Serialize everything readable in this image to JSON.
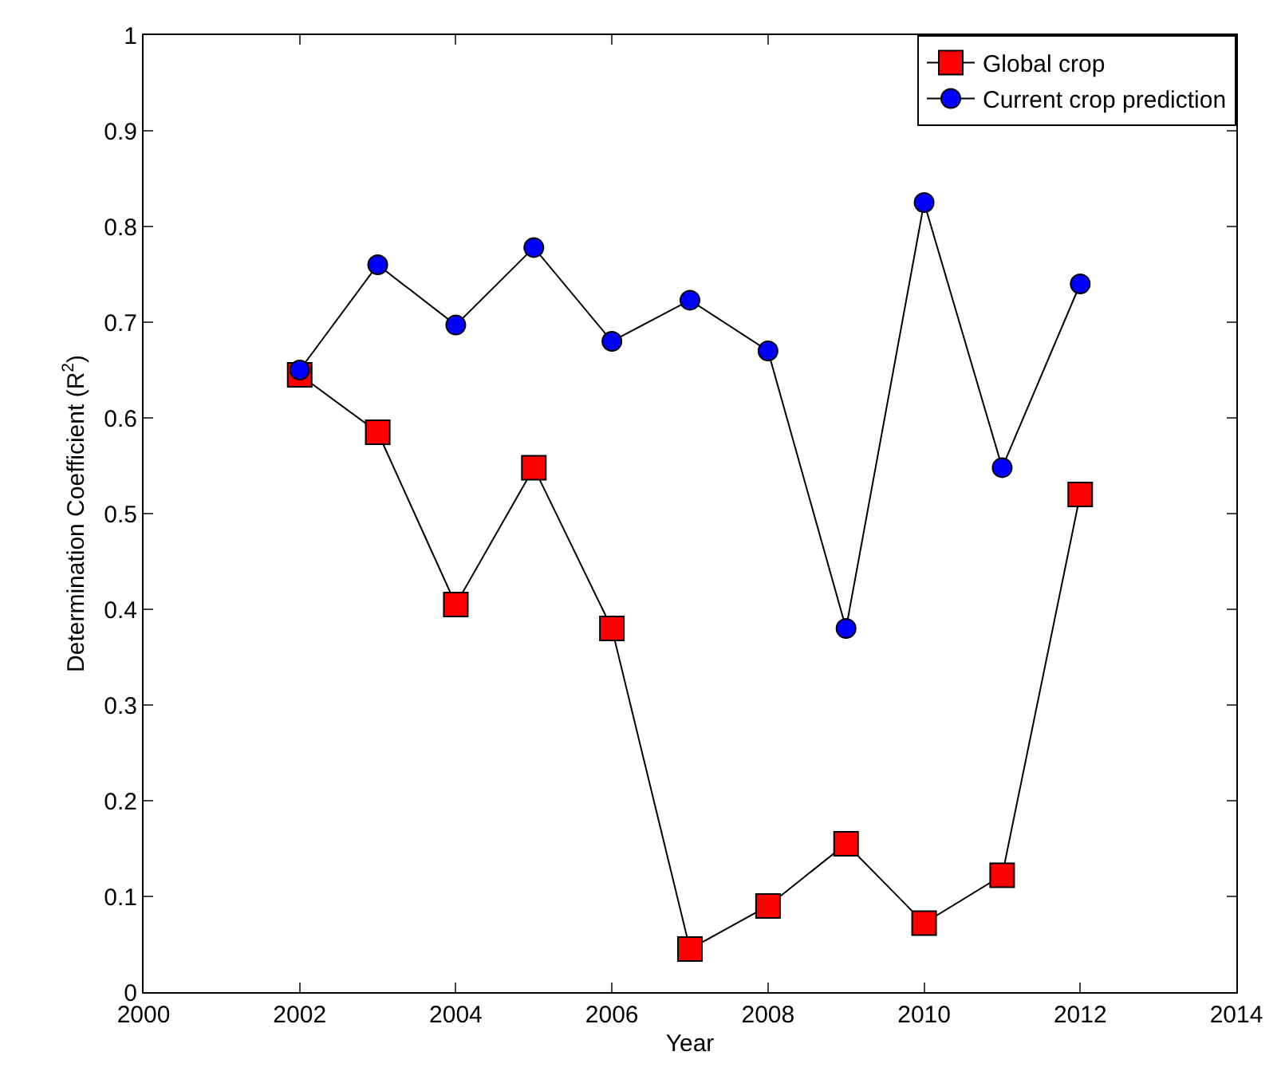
{
  "chart_data": {
    "type": "line",
    "xlabel": "Year",
    "ylabel": "Determination Coefficient (R$^{2}$)",
    "x": [
      2002,
      2003,
      2004,
      2005,
      2006,
      2007,
      2008,
      2009,
      2010,
      2011,
      2012
    ],
    "series": [
      {
        "name": "Global crop",
        "color": "#ff0000",
        "marker": "square",
        "values": [
          0.645,
          0.585,
          0.405,
          0.548,
          0.38,
          0.045,
          0.09,
          0.155,
          0.072,
          0.122,
          0.52
        ]
      },
      {
        "name": "Current crop prediction",
        "color": "#0000ff",
        "marker": "circle",
        "values": [
          0.65,
          0.76,
          0.697,
          0.778,
          0.68,
          0.723,
          0.67,
          0.38,
          0.825,
          0.548,
          0.74
        ]
      }
    ],
    "xlim": [
      2000,
      2014
    ],
    "xticks": [
      2000,
      2002,
      2004,
      2006,
      2008,
      2010,
      2012,
      2014
    ],
    "ylim": [
      0,
      1
    ],
    "yticks": [
      0,
      0.1,
      0.2,
      0.3,
      0.4,
      0.5,
      0.6,
      0.7,
      0.8,
      0.9,
      1
    ],
    "grid": false,
    "legend": "top right",
    "line_style": "solid"
  }
}
